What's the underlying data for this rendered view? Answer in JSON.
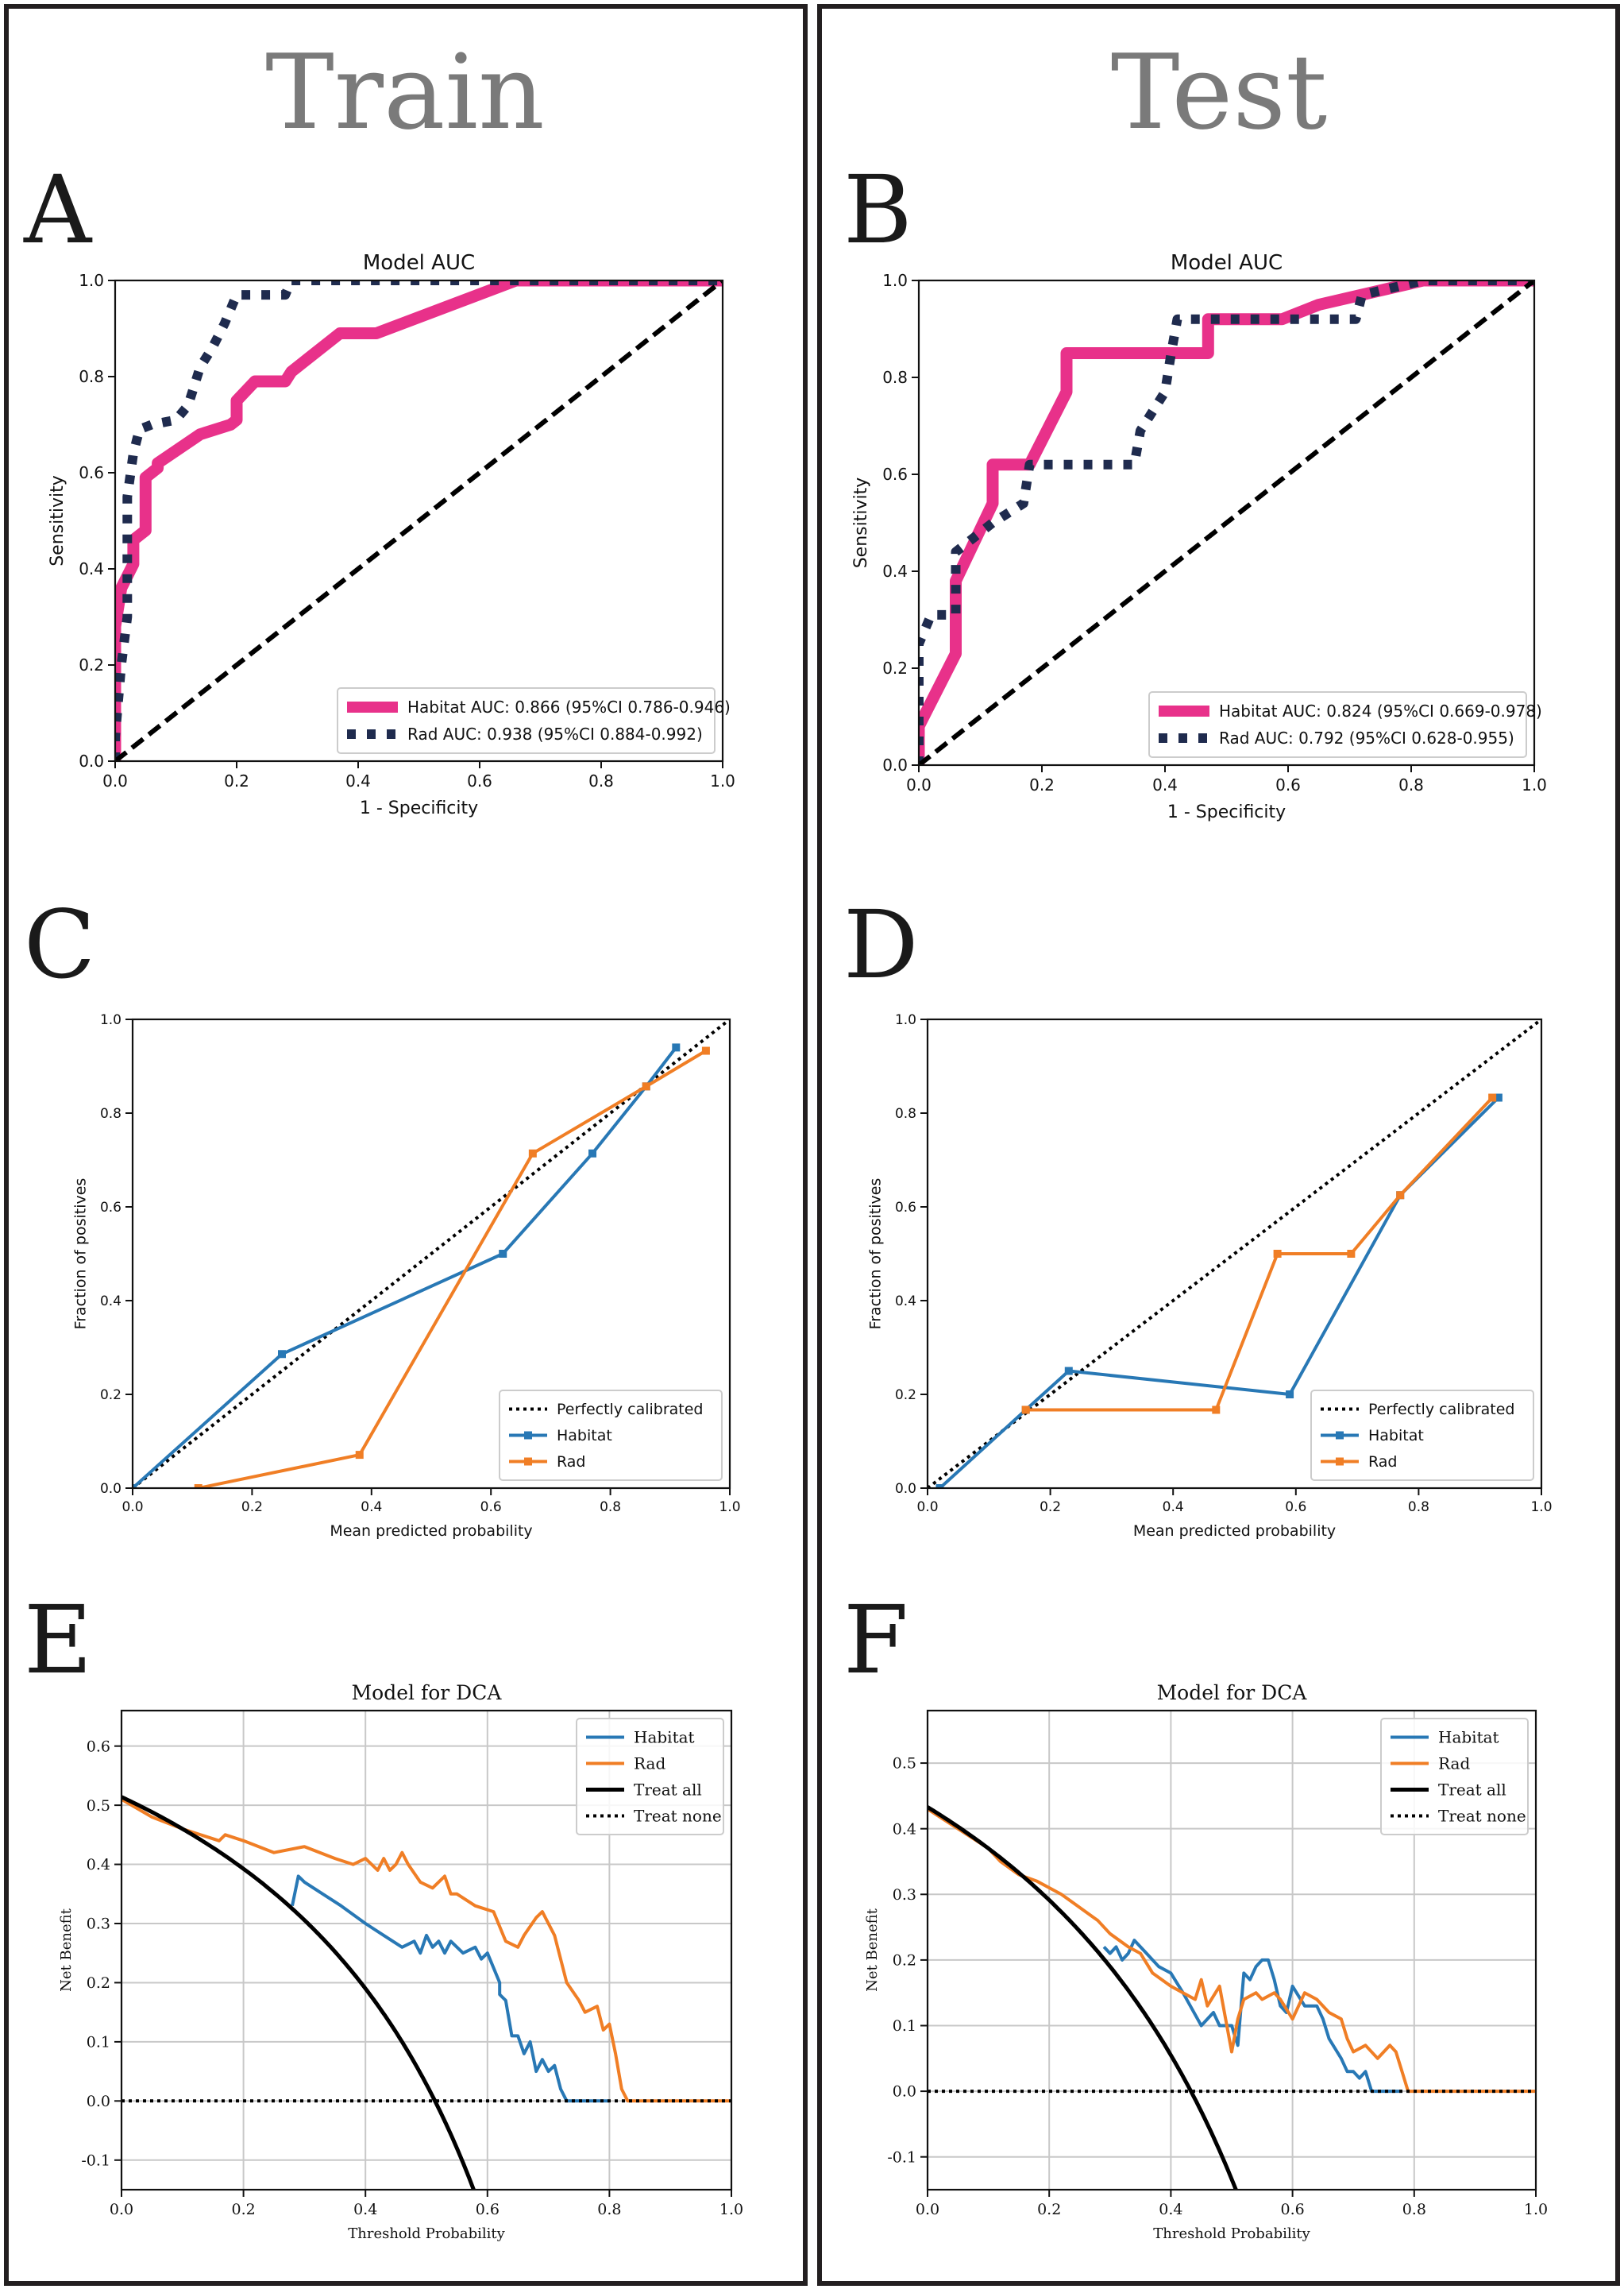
{
  "columns": [
    {
      "title": "Train"
    },
    {
      "title": "Test"
    }
  ],
  "colors": {
    "habitat_roc": "#e8318a",
    "rad_roc": "#1f2b4e",
    "habitat": "#2878b5",
    "rad": "#f07e25",
    "reference": "#000000"
  },
  "chart_data": [
    {
      "panel": "A",
      "type": "line",
      "title": "Model AUC",
      "xlabel": "1 - Specificity",
      "ylabel": "Sensitivity",
      "xlim": [
        0,
        1
      ],
      "ylim": [
        0,
        1
      ],
      "xticks": [
        "0.0",
        "0.2",
        "0.4",
        "0.6",
        "0.8",
        "1.0"
      ],
      "yticks": [
        "0.0",
        "0.2",
        "0.4",
        "0.6",
        "0.8",
        "1.0"
      ],
      "legend_position": "bottom-right",
      "series": [
        {
          "name": "Habitat AUC: 0.866 (95%CI 0.786-0.946)",
          "style": "habitat_roc",
          "x": [
            0,
            0,
            0.01,
            0.03,
            0.03,
            0.05,
            0.05,
            0.07,
            0.07,
            0.14,
            0.19,
            0.2,
            0.2,
            0.23,
            0.28,
            0.29,
            0.37,
            0.43,
            0.66,
            1.0
          ],
          "y": [
            0,
            0.28,
            0.36,
            0.41,
            0.46,
            0.48,
            0.59,
            0.61,
            0.62,
            0.68,
            0.7,
            0.71,
            0.75,
            0.79,
            0.79,
            0.81,
            0.89,
            0.89,
            1.0,
            1.0
          ]
        },
        {
          "name": "Rad AUC: 0.938 (95%CI 0.884-0.992)",
          "style": "rad_roc",
          "x": [
            0,
            0,
            0.01,
            0.02,
            0.02,
            0.03,
            0.04,
            0.06,
            0.1,
            0.12,
            0.14,
            0.16,
            0.18,
            0.2,
            0.26,
            0.28,
            0.29,
            1.0
          ],
          "y": [
            0,
            0.05,
            0.2,
            0.3,
            0.55,
            0.64,
            0.69,
            0.7,
            0.71,
            0.74,
            0.82,
            0.86,
            0.91,
            0.97,
            0.97,
            0.97,
            1.0,
            1.0
          ]
        },
        {
          "name": "chance",
          "style": "chance",
          "x": [
            0,
            1
          ],
          "y": [
            0,
            1
          ]
        }
      ]
    },
    {
      "panel": "B",
      "type": "line",
      "title": "Model AUC",
      "xlabel": "1 - Specificity",
      "ylabel": "Sensitivity",
      "xlim": [
        0,
        1
      ],
      "ylim": [
        0,
        1
      ],
      "xticks": [
        "0.0",
        "0.2",
        "0.4",
        "0.6",
        "0.8",
        "1.0"
      ],
      "yticks": [
        "0.0",
        "0.2",
        "0.4",
        "0.6",
        "0.8",
        "1.0"
      ],
      "legend_position": "bottom-right",
      "series": [
        {
          "name": "Habitat AUC: 0.824 (95%CI 0.669-0.978)",
          "style": "habitat_roc",
          "x": [
            0,
            0,
            0.06,
            0.06,
            0.12,
            0.12,
            0.18,
            0.24,
            0.24,
            0.41,
            0.41,
            0.47,
            0.47,
            0.59,
            0.65,
            0.82,
            1.0
          ],
          "y": [
            0,
            0.08,
            0.23,
            0.38,
            0.54,
            0.62,
            0.62,
            0.77,
            0.85,
            0.85,
            0.85,
            0.85,
            0.92,
            0.92,
            0.95,
            1.0,
            1.0
          ]
        },
        {
          "name": "Rad AUC: 0.792 (95%CI 0.628-0.955)",
          "style": "rad_roc",
          "x": [
            0,
            0,
            0.02,
            0.04,
            0.06,
            0.06,
            0.12,
            0.17,
            0.18,
            0.35,
            0.36,
            0.4,
            0.41,
            0.42,
            0.71,
            0.72,
            0.82,
            1.0
          ],
          "y": [
            0,
            0.25,
            0.31,
            0.31,
            0.31,
            0.44,
            0.5,
            0.54,
            0.62,
            0.62,
            0.69,
            0.77,
            0.85,
            0.92,
            0.92,
            0.97,
            1.0,
            1.0
          ]
        },
        {
          "name": "chance",
          "style": "chance",
          "x": [
            0,
            1
          ],
          "y": [
            0,
            1
          ]
        }
      ]
    },
    {
      "panel": "C",
      "type": "line",
      "title": "",
      "xlabel": "Mean predicted probability",
      "ylabel": "Fraction of positives",
      "xlim": [
        0,
        1
      ],
      "ylim": [
        0,
        1
      ],
      "xticks": [
        "0.0",
        "0.2",
        "0.4",
        "0.6",
        "0.8",
        "1.0"
      ],
      "yticks": [
        "0.0",
        "0.2",
        "0.4",
        "0.6",
        "0.8",
        "1.0"
      ],
      "legend_position": "bottom-right",
      "series": [
        {
          "name": "Perfectly calibrated",
          "style": "calib",
          "x": [
            0,
            1
          ],
          "y": [
            0,
            1
          ]
        },
        {
          "name": "Habitat",
          "style": "habitat",
          "markers": true,
          "x": [
            0.0,
            0.25,
            0.62,
            0.77,
            0.86,
            0.91
          ],
          "y": [
            0.0,
            0.286,
            0.5,
            0.714,
            0.857,
            0.94
          ]
        },
        {
          "name": "Rad",
          "style": "rad",
          "markers": true,
          "x": [
            0.11,
            0.38,
            0.67,
            0.86,
            0.96
          ],
          "y": [
            0.0,
            0.071,
            0.714,
            0.857,
            0.933
          ]
        }
      ]
    },
    {
      "panel": "D",
      "type": "line",
      "title": "",
      "xlabel": "Mean predicted probability",
      "ylabel": "Fraction of positives",
      "xlim": [
        0,
        1
      ],
      "ylim": [
        0,
        1
      ],
      "xticks": [
        "0.0",
        "0.2",
        "0.4",
        "0.6",
        "0.8",
        "1.0"
      ],
      "yticks": [
        "0.0",
        "0.2",
        "0.4",
        "0.6",
        "0.8",
        "1.0"
      ],
      "legend_position": "bottom-right",
      "series": [
        {
          "name": "Perfectly calibrated",
          "style": "calib",
          "x": [
            0,
            1
          ],
          "y": [
            0,
            1
          ]
        },
        {
          "name": "Habitat",
          "style": "habitat",
          "markers": true,
          "x": [
            0.02,
            0.16,
            0.23,
            0.59,
            0.77,
            0.93
          ],
          "y": [
            0.0,
            0.167,
            0.25,
            0.2,
            0.625,
            0.833
          ]
        },
        {
          "name": "Rad",
          "style": "rad",
          "markers": true,
          "x": [
            0.16,
            0.47,
            0.57,
            0.69,
            0.77,
            0.92
          ],
          "y": [
            0.167,
            0.167,
            0.5,
            0.5,
            0.625,
            0.833
          ]
        }
      ]
    },
    {
      "panel": "E",
      "type": "line",
      "title": "Model for DCA",
      "xlabel": "Threshold Probability",
      "ylabel": "Net Benefit",
      "xlim": [
        0,
        1
      ],
      "ylim": [
        -0.15,
        0.66
      ],
      "xticks": [
        "0.0",
        "0.2",
        "0.4",
        "0.6",
        "0.8",
        "1.0"
      ],
      "yticks": [
        "-0.1",
        "0.0",
        "0.1",
        "0.2",
        "0.3",
        "0.4",
        "0.5",
        "0.6"
      ],
      "grid": true,
      "legend_position": "top-right",
      "series": [
        {
          "name": "Habitat",
          "style": "habitat",
          "x": [
            0.28,
            0.29,
            0.3,
            0.33,
            0.36,
            0.4,
            0.43,
            0.46,
            0.48,
            0.49,
            0.5,
            0.51,
            0.52,
            0.53,
            0.54,
            0.56,
            0.58,
            0.59,
            0.6,
            0.62,
            0.62,
            0.63,
            0.64,
            0.65,
            0.66,
            0.67,
            0.68,
            0.69,
            0.7,
            0.71,
            0.72,
            0.73,
            0.76,
            0.8
          ],
          "y": [
            0.33,
            0.38,
            0.37,
            0.35,
            0.33,
            0.3,
            0.28,
            0.26,
            0.27,
            0.25,
            0.28,
            0.26,
            0.27,
            0.25,
            0.27,
            0.25,
            0.26,
            0.24,
            0.25,
            0.2,
            0.18,
            0.17,
            0.11,
            0.11,
            0.08,
            0.1,
            0.05,
            0.07,
            0.05,
            0.06,
            0.02,
            0.0,
            0.0,
            0.0
          ]
        },
        {
          "name": "Rad",
          "style": "rad",
          "x": [
            0.0,
            0.05,
            0.1,
            0.16,
            0.17,
            0.2,
            0.25,
            0.3,
            0.35,
            0.38,
            0.4,
            0.42,
            0.43,
            0.44,
            0.45,
            0.46,
            0.47,
            0.49,
            0.51,
            0.53,
            0.54,
            0.55,
            0.58,
            0.61,
            0.63,
            0.65,
            0.66,
            0.68,
            0.69,
            0.71,
            0.73,
            0.75,
            0.76,
            0.78,
            0.79,
            0.8,
            0.81,
            0.82,
            0.83,
            1.0
          ],
          "y": [
            0.51,
            0.48,
            0.46,
            0.44,
            0.45,
            0.44,
            0.42,
            0.43,
            0.41,
            0.4,
            0.41,
            0.39,
            0.41,
            0.39,
            0.4,
            0.42,
            0.4,
            0.37,
            0.36,
            0.38,
            0.35,
            0.35,
            0.33,
            0.32,
            0.27,
            0.26,
            0.28,
            0.31,
            0.32,
            0.28,
            0.2,
            0.17,
            0.15,
            0.16,
            0.12,
            0.13,
            0.08,
            0.02,
            0.0,
            0.0
          ]
        },
        {
          "name": "Treat all",
          "style": "treatall",
          "fn": "treat_all",
          "prevalence": 0.514
        },
        {
          "name": "Treat none",
          "style": "treatnone",
          "x": [
            0,
            1
          ],
          "y": [
            0,
            0
          ]
        }
      ]
    },
    {
      "panel": "F",
      "type": "line",
      "title": "Model for DCA",
      "xlabel": "Threshold Probability",
      "ylabel": "Net Benefit",
      "xlim": [
        0,
        1
      ],
      "ylim": [
        -0.15,
        0.58
      ],
      "xticks": [
        "0.0",
        "0.2",
        "0.4",
        "0.6",
        "0.8",
        "1.0"
      ],
      "yticks": [
        "-0.1",
        "0.0",
        "0.1",
        "0.2",
        "0.3",
        "0.4",
        "0.5"
      ],
      "grid": true,
      "legend_position": "top-right",
      "series": [
        {
          "name": "Habitat",
          "style": "habitat",
          "x": [
            0.29,
            0.3,
            0.31,
            0.32,
            0.33,
            0.34,
            0.36,
            0.38,
            0.4,
            0.42,
            0.45,
            0.47,
            0.48,
            0.5,
            0.51,
            0.52,
            0.53,
            0.54,
            0.55,
            0.56,
            0.57,
            0.58,
            0.59,
            0.6,
            0.62,
            0.64,
            0.65,
            0.66,
            0.68,
            0.69,
            0.7,
            0.71,
            0.72,
            0.73,
            0.76,
            0.78
          ],
          "y": [
            0.22,
            0.21,
            0.22,
            0.2,
            0.21,
            0.23,
            0.21,
            0.19,
            0.18,
            0.15,
            0.1,
            0.12,
            0.1,
            0.1,
            0.07,
            0.18,
            0.17,
            0.19,
            0.2,
            0.2,
            0.17,
            0.13,
            0.12,
            0.16,
            0.13,
            0.13,
            0.11,
            0.08,
            0.05,
            0.03,
            0.03,
            0.02,
            0.03,
            0.0,
            0.0,
            0.0
          ]
        },
        {
          "name": "Rad",
          "style": "rad",
          "x": [
            0.0,
            0.05,
            0.1,
            0.12,
            0.15,
            0.18,
            0.2,
            0.22,
            0.25,
            0.28,
            0.3,
            0.33,
            0.35,
            0.37,
            0.4,
            0.42,
            0.44,
            0.45,
            0.46,
            0.48,
            0.5,
            0.51,
            0.52,
            0.54,
            0.55,
            0.57,
            0.58,
            0.6,
            0.62,
            0.64,
            0.66,
            0.68,
            0.69,
            0.7,
            0.72,
            0.74,
            0.76,
            0.77,
            0.78,
            0.79,
            0.8,
            1.0
          ],
          "y": [
            0.43,
            0.4,
            0.37,
            0.35,
            0.33,
            0.32,
            0.31,
            0.3,
            0.28,
            0.26,
            0.24,
            0.22,
            0.21,
            0.18,
            0.16,
            0.15,
            0.14,
            0.17,
            0.13,
            0.16,
            0.06,
            0.11,
            0.14,
            0.15,
            0.14,
            0.15,
            0.14,
            0.11,
            0.15,
            0.14,
            0.12,
            0.11,
            0.08,
            0.06,
            0.07,
            0.05,
            0.07,
            0.06,
            0.03,
            0.0,
            0.0,
            0.0
          ]
        },
        {
          "name": "Treat all",
          "style": "treatall",
          "fn": "treat_all",
          "prevalence": 0.433
        },
        {
          "name": "Treat none",
          "style": "treatnone",
          "x": [
            0,
            1
          ],
          "y": [
            0,
            0
          ]
        }
      ]
    }
  ]
}
